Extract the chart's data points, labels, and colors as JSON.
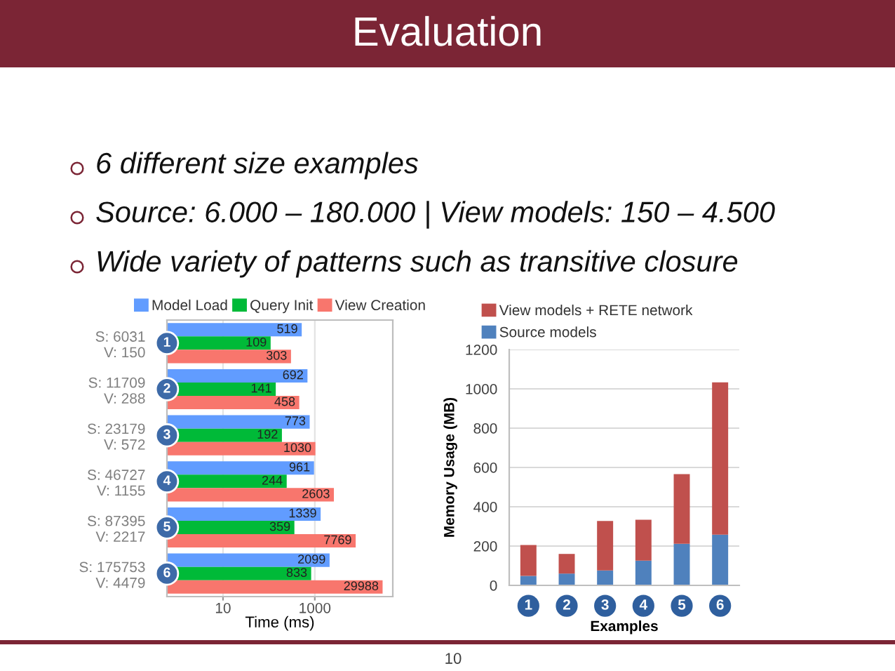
{
  "chart_data": [
    {
      "type": "bar",
      "orientation": "horizontal",
      "title": "Evaluation",
      "categories": [
        "S: 6031\nV: 150",
        "S: 11709\nV: 288",
        "S: 23179\nV: 572",
        "S: 46727\nV: 1155",
        "S: 87395\nV: 2217",
        "S: 175753\nV: 4479"
      ],
      "series": [
        {
          "name": "Model Load",
          "color": "#619cff",
          "values": [
            519,
            692,
            773,
            961,
            1339,
            2099
          ]
        },
        {
          "name": "Query Init",
          "color": "#00ba38",
          "values": [
            109,
            141,
            192,
            244,
            359,
            833
          ]
        },
        {
          "name": "View Creation",
          "color": "#f8766d",
          "values": [
            303,
            458,
            1030,
            2603,
            7769,
            29988
          ]
        }
      ],
      "xlabel": "Time (ms)",
      "log": "x",
      "xlim": [
        0.6,
        50000
      ],
      "xticks": [
        10,
        1000
      ],
      "grid": "x",
      "legend": "top",
      "data_labels": true,
      "annotations": [
        "6 different size examples",
        "Source: 6.000 – 180.000 | View models: 150 – 4.500",
        "Wide variety of patterns such as transitive closure",
        {
          "text": "1",
          "y": "S: 6031\nV: 150"
        },
        {
          "text": "2",
          "y": "S: 11709\nV: 288"
        },
        {
          "text": "3",
          "y": "S: 23179\nV: 572"
        },
        {
          "text": "4",
          "y": "S: 46727\nV: 1155"
        },
        {
          "text": "5",
          "y": "S: 87395\nV: 2217"
        },
        {
          "text": "6",
          "y": "S: 175753\nV: 4479"
        }
      ]
    },
    {
      "type": "bar",
      "stacked": true,
      "categories": [
        "1",
        "2",
        "3",
        "4",
        "5",
        "6"
      ],
      "series": [
        {
          "name": "Source models",
          "color": "#4f81bd",
          "values": [
            48,
            60,
            76,
            126,
            212,
            258
          ]
        },
        {
          "name": "View models + RETE network",
          "color": "#c0504d",
          "values": [
            157,
            100,
            252,
            208,
            354,
            775
          ]
        }
      ],
      "xlabel": "Examples",
      "ylabel": "Memory Usage (MB)",
      "ylim": [
        0,
        1200
      ],
      "yticks": [
        0,
        200,
        400,
        600,
        800,
        1000,
        1200
      ],
      "grid": "y",
      "legend": "top left",
      "annotations": [
        "10"
      ]
    }
  ]
}
